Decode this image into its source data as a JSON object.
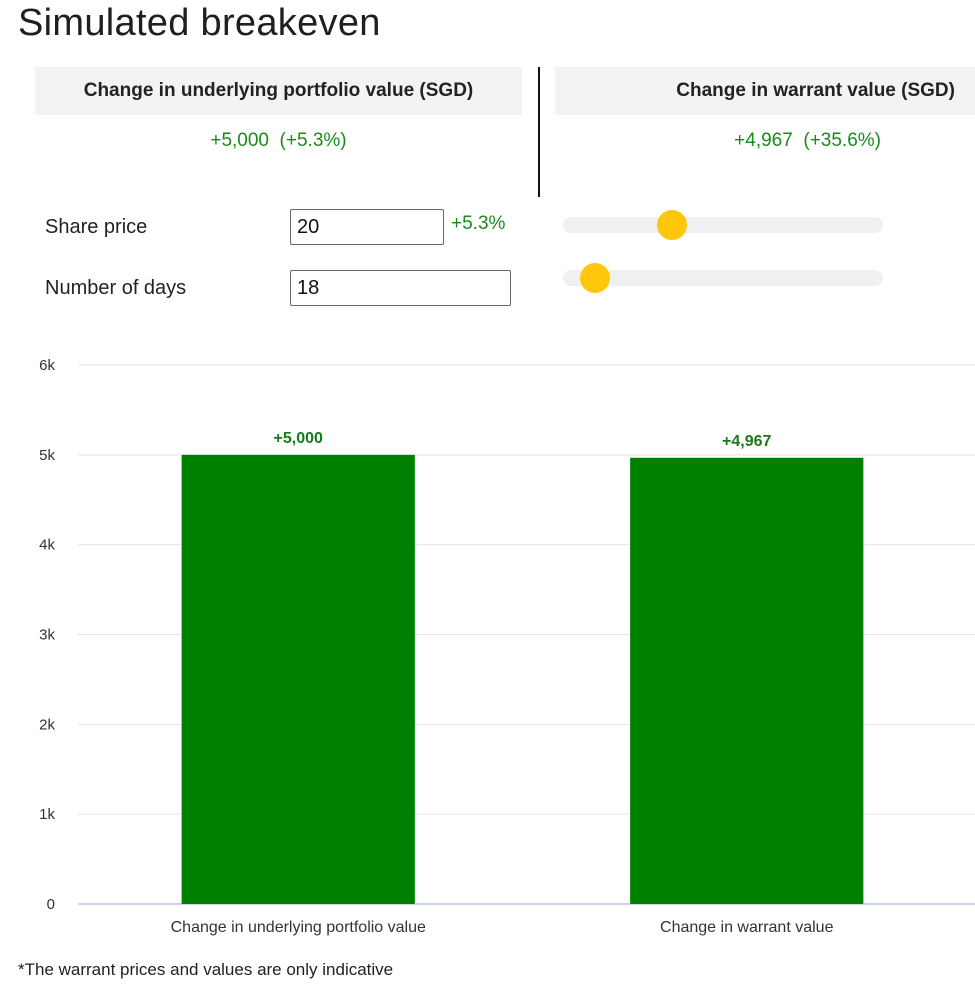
{
  "page": {
    "title": "Simulated breakeven"
  },
  "cards": {
    "underlying": {
      "header": "Change in underlying portfolio value (SGD)",
      "value": "+5,000  (+5.3%)"
    },
    "warrant": {
      "header": "Change in warrant value (SGD)",
      "value": "+4,967  (+35.6%)"
    }
  },
  "controls": {
    "share_price": {
      "label": "Share price",
      "value": "20",
      "change": "+5.3%",
      "slider_level": 0.34
    },
    "days": {
      "label": "Number of days",
      "value": "18",
      "slider_level": 0.1
    }
  },
  "colors": {
    "positive": "#1a8a1a",
    "bar": "#008000",
    "slider_thumb": "#ffc60b"
  },
  "chart_data": {
    "type": "bar",
    "categories": [
      "Change in underlying portfolio value",
      "Change in warrant value"
    ],
    "values": [
      5000,
      4967
    ],
    "data_labels": [
      "+5,000",
      "+4,967"
    ],
    "ylim": [
      0,
      6000
    ],
    "y_ticks": [
      0,
      1000,
      2000,
      3000,
      4000,
      5000,
      6000
    ],
    "y_tick_labels": [
      "0",
      "1k",
      "2k",
      "3k",
      "4k",
      "5k",
      "6k"
    ],
    "grid": true,
    "legend": "none"
  },
  "footnote": "*The warrant prices and values are only indicative"
}
